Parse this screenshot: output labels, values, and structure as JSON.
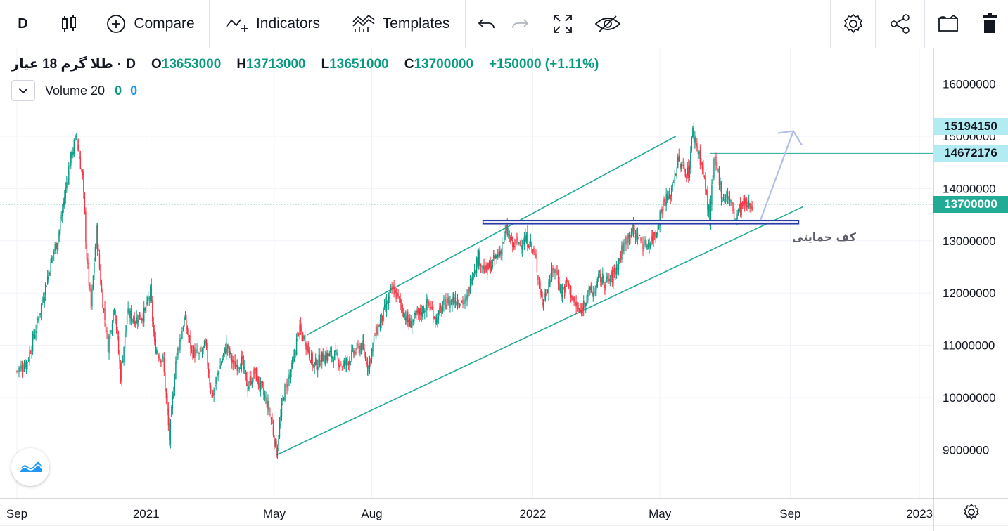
{
  "toolbar": {
    "interval": "D",
    "compare_label": "Compare",
    "indicators_label": "Indicators",
    "templates_label": "Templates"
  },
  "legend": {
    "symbol": "طلا گرم 18 عیار",
    "interval": "D",
    "open_key": "O",
    "open": "13653000",
    "high_key": "H",
    "high": "13713000",
    "low_key": "L",
    "low": "13651000",
    "close_key": "C",
    "close": "13700000",
    "change": "+150000 (+1.11%)"
  },
  "volume_legend": {
    "label": "Volume 20",
    "v0": "0",
    "v1": "0"
  },
  "annotations": {
    "support_label": "کف حمایتی"
  },
  "price_badges": [
    {
      "label": "15194150",
      "value": 15194150
    },
    {
      "label": "14672176",
      "value": 14672176
    },
    {
      "label": "13700000",
      "value": 13700000
    }
  ],
  "colors": {
    "up": "#089981",
    "down": "#f23645",
    "line": "#22ab94",
    "support": "#2a3ba8",
    "arrow": "#b2bfe6"
  },
  "chart_data": {
    "type": "candlestick",
    "title": "طلا گرم 18 عیار",
    "interval": "D",
    "x_ticks": [
      "Sep",
      "2021",
      "May",
      "Aug",
      "2022",
      "May",
      "Sep",
      "2023"
    ],
    "x_tick_days": [
      0,
      122,
      243,
      335,
      487,
      607,
      730,
      852
    ],
    "y_ticks": [
      "16000000",
      "15000000",
      "14000000",
      "13000000",
      "12000000",
      "11000000",
      "10000000",
      "9000000"
    ],
    "ylim": [
      8200000,
      16800000
    ],
    "xlim": [
      -15,
      880
    ],
    "last_price": 13700000,
    "close_series": [
      [
        0,
        10500000
      ],
      [
        10,
        10700000
      ],
      [
        20,
        11500000
      ],
      [
        30,
        12400000
      ],
      [
        40,
        13200000
      ],
      [
        50,
        14500000
      ],
      [
        56,
        15000000
      ],
      [
        62,
        14200000
      ],
      [
        66,
        12700000
      ],
      [
        70,
        11700000
      ],
      [
        75,
        13200000
      ],
      [
        80,
        12000000
      ],
      [
        86,
        11000000
      ],
      [
        92,
        11800000
      ],
      [
        98,
        10400000
      ],
      [
        104,
        11600000
      ],
      [
        112,
        11500000
      ],
      [
        120,
        11600000
      ],
      [
        126,
        12000000
      ],
      [
        130,
        11000000
      ],
      [
        138,
        10700000
      ],
      [
        144,
        9200000
      ],
      [
        150,
        10700000
      ],
      [
        158,
        11500000
      ],
      [
        165,
        10900000
      ],
      [
        172,
        10800000
      ],
      [
        178,
        11000000
      ],
      [
        184,
        10000000
      ],
      [
        190,
        10500000
      ],
      [
        198,
        11000000
      ],
      [
        205,
        10600000
      ],
      [
        212,
        10700000
      ],
      [
        218,
        10200000
      ],
      [
        224,
        10500000
      ],
      [
        230,
        10200000
      ],
      [
        236,
        9900000
      ],
      [
        240,
        9600000
      ],
      [
        245,
        8950000
      ],
      [
        252,
        10100000
      ],
      [
        260,
        10600000
      ],
      [
        266,
        11300000
      ],
      [
        272,
        11100000
      ],
      [
        280,
        10600000
      ],
      [
        290,
        10800000
      ],
      [
        300,
        10800000
      ],
      [
        308,
        10600000
      ],
      [
        316,
        10800000
      ],
      [
        325,
        11000000
      ],
      [
        332,
        10600000
      ],
      [
        338,
        11200000
      ],
      [
        346,
        11600000
      ],
      [
        355,
        12100000
      ],
      [
        362,
        11800000
      ],
      [
        370,
        11400000
      ],
      [
        380,
        11600000
      ],
      [
        388,
        11800000
      ],
      [
        396,
        11500000
      ],
      [
        404,
        11800000
      ],
      [
        414,
        11900000
      ],
      [
        424,
        11800000
      ],
      [
        430,
        12400000
      ],
      [
        436,
        12700000
      ],
      [
        442,
        12400000
      ],
      [
        450,
        12600000
      ],
      [
        456,
        12800000
      ],
      [
        462,
        13200000
      ],
      [
        468,
        12900000
      ],
      [
        476,
        13000000
      ],
      [
        484,
        13000000
      ],
      [
        490,
        12600000
      ],
      [
        496,
        11800000
      ],
      [
        502,
        12200000
      ],
      [
        508,
        12500000
      ],
      [
        514,
        12000000
      ],
      [
        520,
        12200000
      ],
      [
        526,
        11800000
      ],
      [
        532,
        11600000
      ],
      [
        538,
        12000000
      ],
      [
        544,
        12000000
      ],
      [
        550,
        12300000
      ],
      [
        556,
        12200000
      ],
      [
        562,
        12300000
      ],
      [
        568,
        12600000
      ],
      [
        574,
        13000000
      ],
      [
        580,
        13200000
      ],
      [
        586,
        13100000
      ],
      [
        592,
        12900000
      ],
      [
        598,
        13000000
      ],
      [
        604,
        13200000
      ],
      [
        608,
        13600000
      ],
      [
        612,
        13800000
      ],
      [
        616,
        13800000
      ],
      [
        620,
        14200000
      ],
      [
        624,
        14500000
      ],
      [
        628,
        14400000
      ],
      [
        634,
        14300000
      ],
      [
        638,
        15100000
      ],
      [
        642,
        14800000
      ],
      [
        646,
        14500000
      ],
      [
        650,
        14000000
      ],
      [
        654,
        13400000
      ],
      [
        658,
        14500000
      ],
      [
        662,
        14300000
      ],
      [
        666,
        13800000
      ],
      [
        670,
        13900000
      ],
      [
        674,
        13700000
      ],
      [
        678,
        13400000
      ],
      [
        682,
        13600000
      ],
      [
        686,
        13700000
      ],
      [
        690,
        13650000
      ],
      [
        694,
        13700000
      ]
    ],
    "channel_lines": [
      {
        "x1": 245,
        "y1": 8900000,
        "x2": 742,
        "y2": 13650000
      },
      {
        "x1": 274,
        "y1": 11200000,
        "x2": 622,
        "y2": 15000000
      }
    ],
    "support_line": {
      "x1": 440,
      "x2": 738,
      "y": 13350000
    },
    "projection_arrow": {
      "x1": 702,
      "y1": 13400000,
      "x2": 733,
      "y2": 15100000
    },
    "level_lines": [
      {
        "from": 638,
        "value": 15194150
      },
      {
        "from": 654,
        "value": 14672176
      }
    ]
  }
}
